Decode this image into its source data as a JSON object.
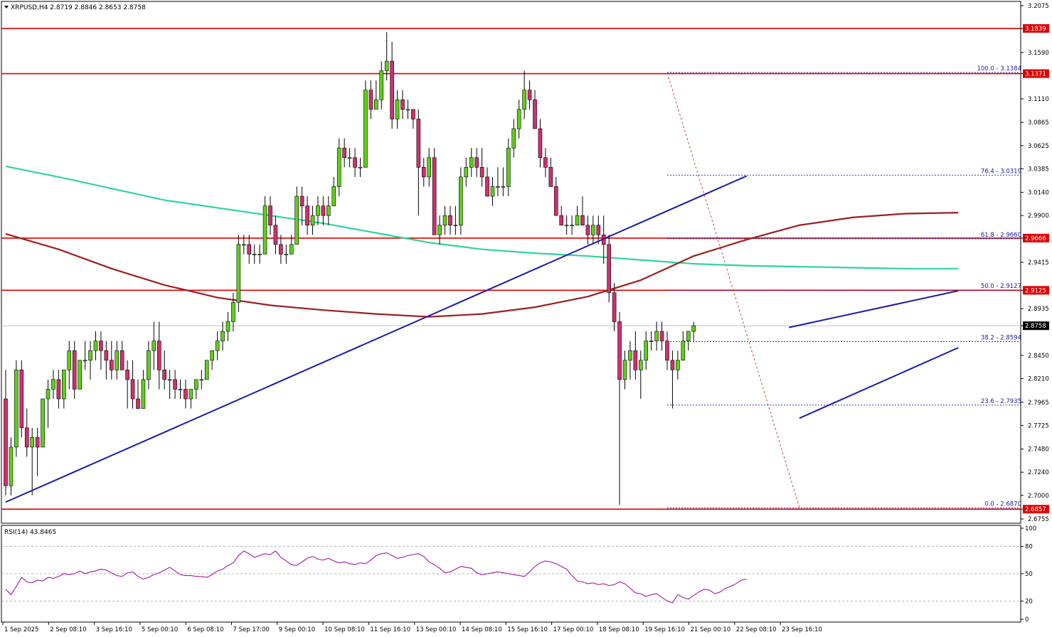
{
  "window": {
    "symbol_title": "XRPUSD,H4  2.8719 2.8846 2.8653 2.8758",
    "rsi_title": "RSI(14) 43.8465"
  },
  "colors": {
    "up": "#5fd018",
    "down": "#d0306e",
    "hline": "#dd0000",
    "trend": "#1a1aaa",
    "ma_fast": "#2ed49a",
    "ma_slow": "#9b1f1f",
    "rsi": "#a01aa0",
    "fib": "#1a1aa0"
  },
  "chart_data": [
    {
      "type": "candlestick",
      "title": "XRPUSD,H4",
      "ohlc_header": {
        "open": 2.8719,
        "high": 2.8846,
        "low": 2.8653,
        "close": 2.8758
      },
      "y_ticks": [
        "3.2075",
        "3.1839",
        "3.1590",
        "3.1371",
        "3.1110",
        "3.0865",
        "3.0625",
        "3.0385",
        "3.0140",
        "2.9900",
        "2.9666",
        "2.9415",
        "2.9125",
        "2.8935",
        "2.8758",
        "2.8450",
        "2.8210",
        "2.7965",
        "2.7725",
        "2.7480",
        "2.7240",
        "2.7000",
        "2.6857",
        "2.6755"
      ],
      "ylim": [
        2.6755,
        3.2075
      ],
      "x_ticks": [
        "1 Sep 2025",
        "2 Sep 08:10",
        "3 Sep 16:10",
        "5 Sep 00:10",
        "6 Sep 08:10",
        "7 Sep 17:00",
        "9 Sep 00:10",
        "10 Sep 08:10",
        "11 Sep 16:10",
        "13 Sep 00:10",
        "14 Sep 08:10",
        "15 Sep 16:10",
        "17 Sep 00:10",
        "18 Sep 08:10",
        "19 Sep 16:10",
        "21 Sep 00:10",
        "22 Sep 08:10",
        "23 Sep 16:10"
      ],
      "price_tags": [
        {
          "label": "3.1839",
          "value": 3.1839,
          "color": "#dd0000"
        },
        {
          "label": "3.1371",
          "value": 3.1371,
          "color": "#dd0000"
        },
        {
          "label": "2.9666",
          "value": 2.9666,
          "color": "#dd0000"
        },
        {
          "label": "2.9125",
          "value": 2.9125,
          "color": "#dd0000"
        },
        {
          "label": "2.8758",
          "value": 2.8758,
          "color": "#000000"
        },
        {
          "label": "2.6857",
          "value": 2.6857,
          "color": "#dd0000"
        }
      ],
      "horizontal_lines": [
        3.1839,
        3.1371,
        2.9666,
        2.9125,
        2.6857
      ],
      "fib_levels": [
        {
          "label": "100.0 - 3.1384",
          "value": 3.1384
        },
        {
          "label": "76.4 - 3.0319",
          "value": 3.0319
        },
        {
          "label": "61.8 - 2.9660",
          "value": 2.966
        },
        {
          "label": "50.0 - 2.9127",
          "value": 2.9127
        },
        {
          "label": "38.2 - 2.8594",
          "value": 2.8594
        },
        {
          "label": "23.6 - 2.7935",
          "value": 2.7935
        },
        {
          "label": "0.0 - 2.6870",
          "value": 2.687
        }
      ],
      "candles": [
        [
          2.8,
          2.83,
          2.7,
          2.71
        ],
        [
          2.71,
          2.76,
          2.7,
          2.75
        ],
        [
          2.75,
          2.84,
          2.74,
          2.83
        ],
        [
          2.83,
          2.84,
          2.76,
          2.77
        ],
        [
          2.77,
          2.79,
          2.74,
          2.75
        ],
        [
          2.75,
          2.77,
          2.7,
          2.76
        ],
        [
          2.76,
          2.77,
          2.72,
          2.75
        ],
        [
          2.75,
          2.8,
          2.75,
          2.8
        ],
        [
          2.8,
          2.82,
          2.77,
          2.81
        ],
        [
          2.81,
          2.83,
          2.8,
          2.82
        ],
        [
          2.82,
          2.83,
          2.79,
          2.8
        ],
        [
          2.8,
          2.83,
          2.79,
          2.83
        ],
        [
          2.83,
          2.86,
          2.81,
          2.85
        ],
        [
          2.85,
          2.86,
          2.8,
          2.81
        ],
        [
          2.81,
          2.84,
          2.81,
          2.84
        ],
        [
          2.84,
          2.86,
          2.83,
          2.84
        ],
        [
          2.84,
          2.86,
          2.82,
          2.85
        ],
        [
          2.85,
          2.87,
          2.84,
          2.86
        ],
        [
          2.86,
          2.87,
          2.83,
          2.85
        ],
        [
          2.85,
          2.86,
          2.82,
          2.84
        ],
        [
          2.84,
          2.86,
          2.82,
          2.83
        ],
        [
          2.83,
          2.86,
          2.82,
          2.85
        ],
        [
          2.85,
          2.86,
          2.83,
          2.83
        ],
        [
          2.83,
          2.84,
          2.79,
          2.82
        ],
        [
          2.82,
          2.84,
          2.79,
          2.8
        ],
        [
          2.8,
          2.82,
          2.79,
          2.79
        ],
        [
          2.79,
          2.83,
          2.79,
          2.82
        ],
        [
          2.82,
          2.86,
          2.81,
          2.85
        ],
        [
          2.85,
          2.88,
          2.83,
          2.86
        ],
        [
          2.86,
          2.88,
          2.81,
          2.83
        ],
        [
          2.83,
          2.85,
          2.81,
          2.82
        ],
        [
          2.82,
          2.83,
          2.8,
          2.82
        ],
        [
          2.82,
          2.83,
          2.8,
          2.81
        ],
        [
          2.81,
          2.82,
          2.8,
          2.81
        ],
        [
          2.81,
          2.82,
          2.79,
          2.8
        ],
        [
          2.8,
          2.81,
          2.79,
          2.81
        ],
        [
          2.81,
          2.82,
          2.8,
          2.82
        ],
        [
          2.82,
          2.83,
          2.81,
          2.82
        ],
        [
          2.82,
          2.84,
          2.82,
          2.84
        ],
        [
          2.84,
          2.85,
          2.83,
          2.85
        ],
        [
          2.85,
          2.87,
          2.84,
          2.86
        ],
        [
          2.86,
          2.88,
          2.85,
          2.87
        ],
        [
          2.87,
          2.89,
          2.86,
          2.88
        ],
        [
          2.88,
          2.91,
          2.87,
          2.9
        ],
        [
          2.9,
          2.97,
          2.89,
          2.96
        ],
        [
          2.96,
          2.97,
          2.95,
          2.96
        ],
        [
          2.96,
          2.97,
          2.94,
          2.95
        ],
        [
          2.95,
          2.96,
          2.94,
          2.95
        ],
        [
          2.95,
          2.96,
          2.94,
          2.95
        ],
        [
          2.95,
          3.01,
          2.95,
          3.0
        ],
        [
          3.0,
          3.01,
          2.97,
          2.98
        ],
        [
          2.98,
          2.99,
          2.95,
          2.96
        ],
        [
          2.96,
          2.97,
          2.94,
          2.95
        ],
        [
          2.95,
          2.96,
          2.94,
          2.95
        ],
        [
          2.95,
          2.97,
          2.95,
          2.96
        ],
        [
          2.96,
          3.02,
          2.96,
          3.01
        ],
        [
          3.01,
          3.02,
          2.98,
          3.0
        ],
        [
          3.0,
          3.01,
          2.97,
          2.98
        ],
        [
          2.98,
          3.0,
          2.97,
          2.99
        ],
        [
          2.99,
          3.01,
          2.98,
          3.0
        ],
        [
          3.0,
          3.01,
          2.98,
          2.99
        ],
        [
          2.99,
          3.01,
          2.98,
          3.0
        ],
        [
          3.0,
          3.03,
          3.0,
          3.02
        ],
        [
          3.02,
          3.07,
          3.01,
          3.06
        ],
        [
          3.06,
          3.07,
          3.04,
          3.05
        ],
        [
          3.05,
          3.06,
          3.04,
          3.05
        ],
        [
          3.05,
          3.06,
          3.03,
          3.04
        ],
        [
          3.04,
          3.05,
          3.03,
          3.04
        ],
        [
          3.04,
          3.13,
          3.04,
          3.12
        ],
        [
          3.12,
          3.13,
          3.09,
          3.1
        ],
        [
          3.1,
          3.13,
          3.1,
          3.11
        ],
        [
          3.11,
          3.15,
          3.1,
          3.14
        ],
        [
          3.14,
          3.18,
          3.13,
          3.15
        ],
        [
          3.15,
          3.17,
          3.08,
          3.09
        ],
        [
          3.09,
          3.12,
          3.08,
          3.11
        ],
        [
          3.11,
          3.12,
          3.09,
          3.1
        ],
        [
          3.1,
          3.11,
          3.09,
          3.1
        ],
        [
          3.1,
          3.1,
          3.08,
          3.09
        ],
        [
          3.09,
          3.1,
          2.99,
          3.04
        ],
        [
          3.04,
          3.05,
          3.02,
          3.03
        ],
        [
          3.03,
          3.06,
          3.02,
          3.05
        ],
        [
          3.05,
          3.06,
          2.97,
          2.97
        ],
        [
          2.97,
          2.99,
          2.96,
          2.98
        ],
        [
          2.98,
          3.0,
          2.97,
          2.99
        ],
        [
          2.99,
          3.0,
          2.97,
          2.98
        ],
        [
          2.98,
          3.0,
          2.97,
          2.98
        ],
        [
          2.98,
          3.04,
          2.97,
          3.03
        ],
        [
          3.03,
          3.05,
          3.02,
          3.04
        ],
        [
          3.04,
          3.06,
          3.03,
          3.05
        ],
        [
          3.05,
          3.06,
          3.03,
          3.04
        ],
        [
          3.04,
          3.06,
          3.02,
          3.03
        ],
        [
          3.03,
          3.04,
          3.01,
          3.01
        ],
        [
          3.01,
          3.03,
          3.0,
          3.02
        ],
        [
          3.02,
          3.04,
          3.01,
          3.02
        ],
        [
          3.02,
          3.04,
          3.01,
          3.02
        ],
        [
          3.02,
          3.07,
          3.01,
          3.06
        ],
        [
          3.06,
          3.09,
          3.05,
          3.08
        ],
        [
          3.08,
          3.11,
          3.07,
          3.1
        ],
        [
          3.1,
          3.14,
          3.09,
          3.12
        ],
        [
          3.12,
          3.13,
          3.1,
          3.11
        ],
        [
          3.11,
          3.12,
          3.08,
          3.08
        ],
        [
          3.08,
          3.09,
          3.04,
          3.05
        ],
        [
          3.05,
          3.06,
          3.03,
          3.04
        ],
        [
          3.04,
          3.05,
          3.02,
          3.02
        ],
        [
          3.02,
          3.03,
          2.99,
          2.99
        ],
        [
          2.99,
          3.0,
          2.98,
          2.98
        ],
        [
          2.98,
          2.99,
          2.97,
          2.98
        ],
        [
          2.98,
          2.99,
          2.97,
          2.98
        ],
        [
          2.98,
          3.0,
          2.98,
          2.99
        ],
        [
          2.99,
          3.01,
          2.98,
          2.98
        ],
        [
          2.98,
          2.99,
          2.96,
          2.97
        ],
        [
          2.97,
          2.99,
          2.96,
          2.98
        ],
        [
          2.98,
          2.99,
          2.96,
          2.97
        ],
        [
          2.97,
          2.99,
          2.94,
          2.96
        ],
        [
          2.96,
          2.97,
          2.9,
          2.91
        ],
        [
          2.91,
          2.92,
          2.87,
          2.88
        ],
        [
          2.88,
          2.89,
          2.69,
          2.82
        ],
        [
          2.82,
          2.85,
          2.81,
          2.84
        ],
        [
          2.84,
          2.86,
          2.82,
          2.85
        ],
        [
          2.85,
          2.87,
          2.82,
          2.83
        ],
        [
          2.83,
          2.85,
          2.8,
          2.84
        ],
        [
          2.84,
          2.87,
          2.83,
          2.86
        ],
        [
          2.86,
          2.87,
          2.85,
          2.86
        ],
        [
          2.86,
          2.88,
          2.85,
          2.87
        ],
        [
          2.87,
          2.88,
          2.85,
          2.86
        ],
        [
          2.86,
          2.87,
          2.83,
          2.84
        ],
        [
          2.84,
          2.85,
          2.79,
          2.83
        ],
        [
          2.83,
          2.85,
          2.82,
          2.84
        ],
        [
          2.84,
          2.87,
          2.84,
          2.86
        ],
        [
          2.86,
          2.87,
          2.85,
          2.87
        ],
        [
          2.87,
          2.88,
          2.86,
          2.8758
        ]
      ],
      "ma_slow": [
        [
          0,
          2.971
        ],
        [
          10,
          2.955
        ],
        [
          20,
          2.935
        ],
        [
          30,
          2.918
        ],
        [
          40,
          2.905
        ],
        [
          50,
          2.897
        ],
        [
          60,
          2.892
        ],
        [
          70,
          2.888
        ],
        [
          80,
          2.885
        ],
        [
          90,
          2.888
        ],
        [
          100,
          2.895
        ],
        [
          110,
          2.906
        ],
        [
          120,
          2.923
        ],
        [
          130,
          2.948
        ],
        [
          140,
          2.965
        ],
        [
          150,
          2.98
        ],
        [
          160,
          2.988
        ],
        [
          170,
          2.992
        ],
        [
          180,
          2.993
        ]
      ],
      "ma_fast": [
        [
          0,
          3.041
        ],
        [
          10,
          3.03
        ],
        [
          20,
          3.018
        ],
        [
          30,
          3.006
        ],
        [
          40,
          2.998
        ],
        [
          50,
          2.99
        ],
        [
          60,
          2.982
        ],
        [
          70,
          2.972
        ],
        [
          80,
          2.962
        ],
        [
          90,
          2.955
        ],
        [
          100,
          2.951
        ],
        [
          110,
          2.948
        ],
        [
          120,
          2.944
        ],
        [
          130,
          2.94
        ],
        [
          140,
          2.938
        ],
        [
          150,
          2.937
        ],
        [
          160,
          2.936
        ],
        [
          170,
          2.935
        ],
        [
          180,
          2.935
        ]
      ],
      "trendlines": [
        [
          [
            0,
            2.693
          ],
          [
            140,
            3.031
          ]
        ],
        [
          [
            148,
            2.874
          ],
          [
            180,
            2.912
          ]
        ],
        [
          [
            150,
            2.78
          ],
          [
            180,
            2.853
          ]
        ]
      ],
      "fib_connector": [
        [
          125,
          3.138
        ],
        [
          150,
          2.687
        ]
      ],
      "fib_extension_from": 125,
      "fib_extension_to": 180
    },
    {
      "type": "line",
      "title": "RSI(14) 43.8465",
      "ylim": [
        0,
        100
      ],
      "y_ticks": [
        "100",
        "80",
        "50",
        "20",
        "0"
      ],
      "guide_levels": [
        80,
        50,
        20
      ],
      "values": [
        33,
        27,
        36,
        46,
        41,
        40,
        43,
        42,
        46,
        45,
        47,
        50,
        49,
        50,
        53,
        50,
        52,
        53,
        55,
        54,
        51,
        48,
        47,
        51,
        52,
        47,
        44,
        46,
        49,
        51,
        54,
        57,
        53,
        49,
        48,
        48,
        47,
        47,
        46,
        49,
        53,
        55,
        59,
        62,
        70,
        75,
        72,
        68,
        70,
        72,
        71,
        75,
        68,
        64,
        60,
        59,
        63,
        67,
        69,
        66,
        65,
        67,
        64,
        62,
        63,
        61,
        60,
        62,
        61,
        65,
        70,
        72,
        73,
        70,
        67,
        68,
        70,
        71,
        72,
        69,
        63,
        60,
        56,
        51,
        52,
        55,
        58,
        57,
        56,
        51,
        49,
        50,
        51,
        52,
        51,
        50,
        49,
        48,
        47,
        52,
        58,
        62,
        64,
        63,
        61,
        58,
        55,
        48,
        42,
        41,
        39,
        40,
        38,
        39,
        37,
        38,
        41,
        39,
        34,
        29,
        28,
        25,
        27,
        28,
        24,
        20,
        18,
        27,
        24,
        22,
        26,
        30,
        33,
        32,
        28,
        30,
        34,
        36,
        39,
        43,
        44
      ]
    }
  ]
}
